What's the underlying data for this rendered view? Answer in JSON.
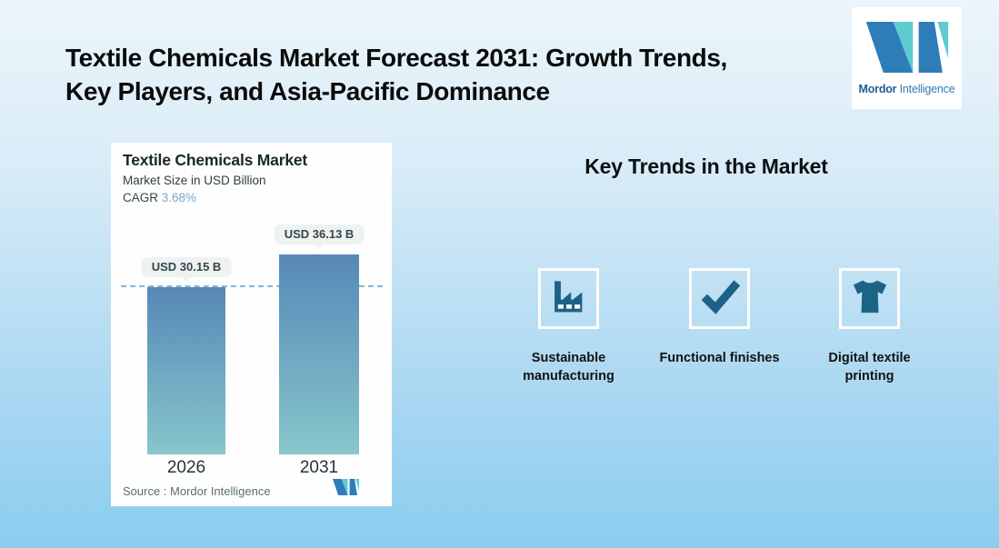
{
  "header": {
    "title_line1": "Textile Chemicals Market Forecast 2031: Growth Trends,",
    "title_line2": "Key Players, and Asia-Pacific Dominance"
  },
  "logo": {
    "brand_bold": "Mordor",
    "brand_regular": "Intelligence",
    "colors": {
      "blue": "#2e7cb8",
      "teal": "#5ecbd1"
    }
  },
  "chart_card": {
    "title": "Textile Chemicals Market",
    "subtitle": "Market Size in USD Billion",
    "cagr_label": "CAGR",
    "cagr_value": "3.68%",
    "source_text": "Source :  Mordor Intelligence"
  },
  "chart_data": {
    "type": "bar",
    "title": "Textile Chemicals Market",
    "subtitle": "Market Size in USD Billion",
    "unit": "USD Billion",
    "cagr": "3.68%",
    "categories": [
      "2026",
      "2031"
    ],
    "values": [
      30.15,
      36.13
    ],
    "value_labels": [
      "USD 30.15 B",
      "USD 36.13 B"
    ],
    "ylim": [
      0,
      36.13
    ],
    "grid": false,
    "legend": false,
    "annotations": [
      "horizontal dashed reference line at 2026 value (30.15)"
    ],
    "colors": {
      "bar_gradient_top": "#5889b6",
      "bar_gradient_bottom": "#87c6cb",
      "dashed_line": "#85b5d8",
      "tooltip_bg": "#eef2f1"
    }
  },
  "trends": {
    "heading": "Key Trends in the Market",
    "items": [
      {
        "icon": "factory-icon",
        "label": "Sustainable manufacturing"
      },
      {
        "icon": "checkmark-icon",
        "label": "Functional finishes"
      },
      {
        "icon": "tshirt-icon",
        "label": "Digital textile printing"
      }
    ],
    "icon_color": "#1d6387"
  },
  "background": {
    "gradient_top": "#ecf5fb",
    "gradient_bottom": "#8bcdef"
  }
}
